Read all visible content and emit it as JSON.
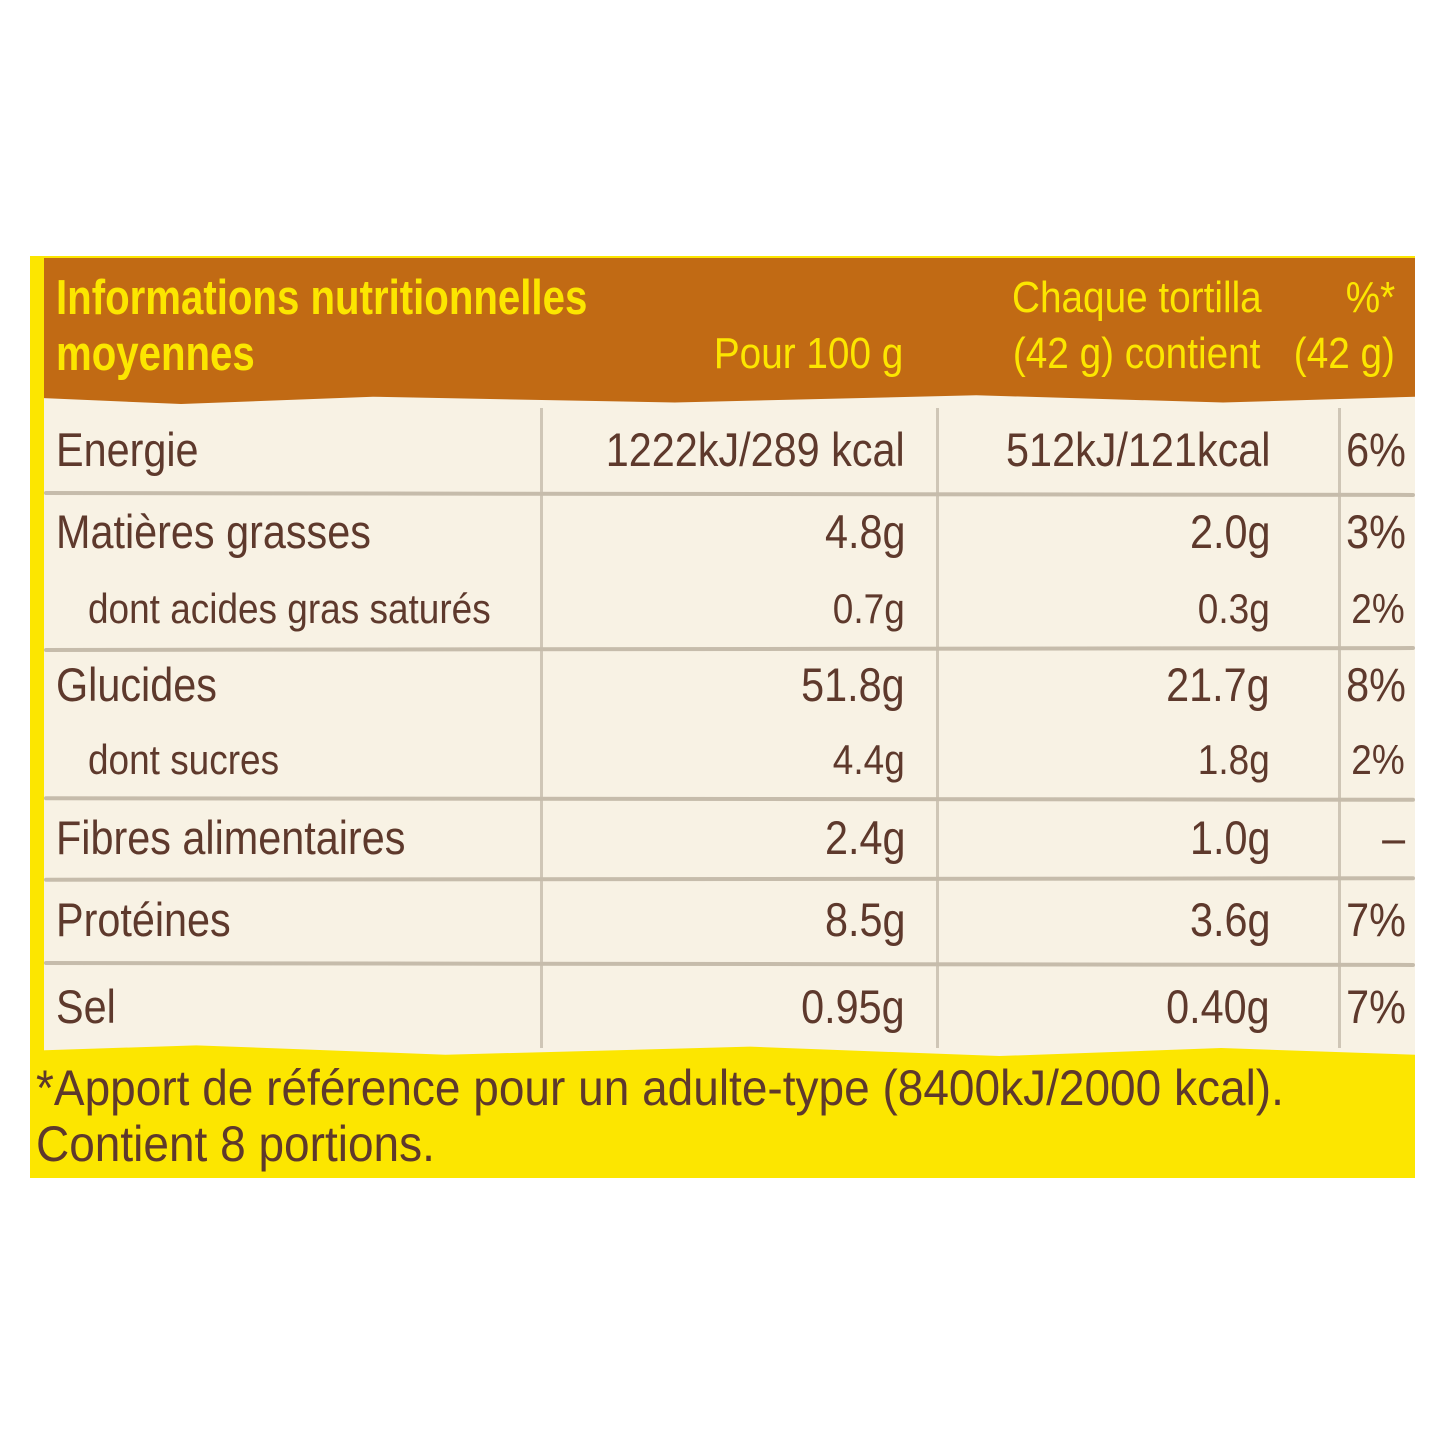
{
  "panel": {
    "header": {
      "title_line1": "Informations nutritionnelles",
      "title_line2": "moyennes",
      "col_per_100g": "Pour 100 g",
      "col_portion_line1": "Chaque tortilla",
      "col_portion_line2": "(42 g) contient",
      "col_percent_line1": "%*",
      "col_percent_line2": "(42 g)"
    },
    "table": {
      "rows": [
        {
          "label": "Energie",
          "per_100g": "1222kJ/289 kcal",
          "per_portion": "512kJ/121kcal",
          "percent_ri": "6%"
        },
        {
          "label": "Matières grasses",
          "per_100g": "4.8g",
          "per_portion": "2.0g",
          "percent_ri": "3%"
        },
        {
          "label": "dont acides gras saturés",
          "per_100g": "0.7g",
          "per_portion": "0.3g",
          "percent_ri": "2%"
        },
        {
          "label": "Glucides",
          "per_100g": "51.8g",
          "per_portion": "21.7g",
          "percent_ri": "8%"
        },
        {
          "label": "dont sucres",
          "per_100g": "4.4g",
          "per_portion": "1.8g",
          "percent_ri": "2%"
        },
        {
          "label": "Fibres alimentaires",
          "per_100g": "2.4g",
          "per_portion": "1.0g",
          "percent_ri": "–"
        },
        {
          "label": "Protéines",
          "per_100g": "8.5g",
          "per_portion": "3.6g",
          "percent_ri": "7%"
        },
        {
          "label": "Sel",
          "per_100g": "0.95g",
          "per_portion": "0.40g",
          "percent_ri": "7%"
        }
      ]
    },
    "footer": {
      "line1": "*Apport de référence pour un adulte-type (8400kJ/2000 kcal).",
      "line2": "Contient 8 portions."
    },
    "colors": {
      "header_brown": "#C16A14",
      "accent_yellow": "#FCE600",
      "body_cream": "#F8F2E4",
      "text_brown": "#5E392C",
      "grid_line": "#C6BCAB"
    }
  }
}
